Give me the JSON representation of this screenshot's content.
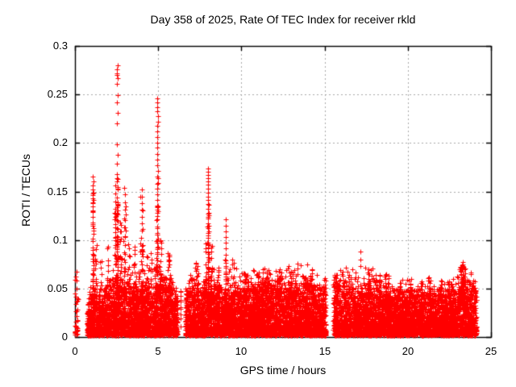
{
  "window": {
    "title": "Day 358 of 2025, Rate Of TEC Index for receiver rkld"
  },
  "colors": {
    "marker": "#ff0000",
    "frame": "#000000",
    "grid": "#a9a9a9",
    "background": "#ffffff",
    "text": "#000000"
  },
  "chart_data": {
    "type": "scatter",
    "title": "Day 358 of 2025, Rate Of TEC Index for receiver rkld",
    "xlabel": "GPS time / hours",
    "ylabel": "ROTI / TECUs",
    "xlim": [
      0,
      25
    ],
    "ylim": [
      0,
      0.3
    ],
    "xticks": [
      0,
      5,
      10,
      15,
      20,
      25
    ],
    "xtick_labels": [
      "0",
      "5",
      "10",
      "15",
      "20",
      "25"
    ],
    "yticks": [
      0,
      0.05,
      0.1,
      0.15,
      0.2,
      0.25,
      0.3
    ],
    "ytick_labels": [
      "0",
      "0.05",
      "0.1",
      "0.15",
      "0.2",
      "0.25",
      "0.3"
    ],
    "grid": true,
    "legend": "none",
    "marker": "plus",
    "marker_size_px": 7,
    "seed": 1234567,
    "description": "Dense red scatter band of ROTI values 0-0.05 TECU across 0-24.1 h with spikes near 1.1 h (to 0.165), 2.55 h (to 0.28), 4.95 h (to 0.246), 8.0 h (to 0.174), 9.05 h (to 0.12); data gaps near 0.25-0.73 h, 6.17-6.62 h and 15.07-15.52 h",
    "band": {
      "segments": [
        [
          0.73,
          6.17
        ],
        [
          6.62,
          15.07
        ],
        [
          15.52,
          24.12
        ]
      ],
      "density_points_per_hour": 500,
      "v_floor": 0.002,
      "envelope": [
        [
          0.73,
          0.03
        ],
        [
          1.1,
          0.042
        ],
        [
          1.6,
          0.036
        ],
        [
          2.1,
          0.046
        ],
        [
          2.6,
          0.052
        ],
        [
          3.1,
          0.05
        ],
        [
          3.6,
          0.046
        ],
        [
          4.1,
          0.05
        ],
        [
          4.6,
          0.046
        ],
        [
          5.0,
          0.052
        ],
        [
          5.6,
          0.046
        ],
        [
          6.1,
          0.04
        ],
        [
          6.62,
          0.04
        ],
        [
          7.0,
          0.044
        ],
        [
          7.6,
          0.046
        ],
        [
          8.0,
          0.05
        ],
        [
          8.6,
          0.046
        ],
        [
          9.1,
          0.047
        ],
        [
          9.6,
          0.044
        ],
        [
          10.1,
          0.046
        ],
        [
          10.6,
          0.048
        ],
        [
          11.1,
          0.05
        ],
        [
          11.6,
          0.048
        ],
        [
          12.1,
          0.049
        ],
        [
          12.6,
          0.048
        ],
        [
          13.1,
          0.05
        ],
        [
          13.6,
          0.047
        ],
        [
          14.1,
          0.05
        ],
        [
          14.6,
          0.046
        ],
        [
          15.0,
          0.044
        ],
        [
          15.55,
          0.05
        ],
        [
          16.1,
          0.046
        ],
        [
          16.6,
          0.044
        ],
        [
          17.1,
          0.045
        ],
        [
          17.65,
          0.049
        ],
        [
          18.1,
          0.045
        ],
        [
          18.6,
          0.044
        ],
        [
          19.1,
          0.041
        ],
        [
          19.6,
          0.04
        ],
        [
          20.1,
          0.041
        ],
        [
          20.6,
          0.04
        ],
        [
          21.1,
          0.043
        ],
        [
          21.6,
          0.041
        ],
        [
          22.1,
          0.04
        ],
        [
          22.6,
          0.041
        ],
        [
          23.1,
          0.048
        ],
        [
          23.35,
          0.055
        ],
        [
          23.7,
          0.046
        ],
        [
          24.12,
          0.042
        ]
      ]
    },
    "clusters_schema": [
      "t_center_hours",
      "t_spread_hours",
      "count",
      "v_min",
      "v_max",
      "bias"
    ],
    "clusters": [
      [
        0.08,
        0.18,
        32,
        0.002,
        0.045,
        1.6
      ],
      [
        0.06,
        0.1,
        5,
        0.045,
        0.07,
        1.0
      ],
      [
        1.08,
        0.07,
        26,
        0.04,
        0.15,
        1.2
      ],
      [
        1.25,
        0.12,
        14,
        0.035,
        0.095,
        1.3
      ],
      [
        1.55,
        0.12,
        10,
        0.035,
        0.08,
        1.3
      ],
      [
        2.0,
        0.15,
        14,
        0.035,
        0.1,
        1.4
      ],
      [
        2.42,
        0.1,
        20,
        0.04,
        0.13,
        1.3
      ],
      [
        2.55,
        0.06,
        36,
        0.04,
        0.165,
        1.1
      ],
      [
        2.75,
        0.1,
        18,
        0.04,
        0.12,
        1.3
      ],
      [
        3.0,
        0.15,
        22,
        0.04,
        0.15,
        1.3
      ],
      [
        3.25,
        0.1,
        10,
        0.04,
        0.1,
        1.3
      ],
      [
        3.55,
        0.1,
        12,
        0.04,
        0.1,
        1.3
      ],
      [
        4.0,
        0.18,
        28,
        0.04,
        0.145,
        1.4
      ],
      [
        4.35,
        0.1,
        8,
        0.04,
        0.085,
        1.3
      ],
      [
        4.6,
        0.1,
        10,
        0.04,
        0.09,
        1.3
      ],
      [
        4.95,
        0.08,
        34,
        0.04,
        0.165,
        1.1
      ],
      [
        5.15,
        0.1,
        14,
        0.04,
        0.11,
        1.3
      ],
      [
        5.65,
        0.15,
        20,
        0.04,
        0.09,
        1.3
      ],
      [
        6.35,
        0.06,
        12,
        0.006,
        0.05,
        1.0
      ],
      [
        7.3,
        0.12,
        10,
        0.04,
        0.078,
        1.3
      ],
      [
        7.85,
        0.08,
        12,
        0.04,
        0.1,
        1.3
      ],
      [
        8.0,
        0.07,
        30,
        0.04,
        0.14,
        1.2
      ],
      [
        8.2,
        0.08,
        12,
        0.04,
        0.095,
        1.3
      ],
      [
        8.6,
        0.12,
        12,
        0.04,
        0.085,
        1.3
      ],
      [
        9.05,
        0.07,
        16,
        0.04,
        0.115,
        1.2
      ],
      [
        9.5,
        0.12,
        10,
        0.04,
        0.08,
        1.3
      ],
      [
        10.3,
        0.35,
        24,
        0.04,
        0.068,
        1.2
      ],
      [
        11.0,
        0.2,
        16,
        0.04,
        0.067,
        1.2
      ],
      [
        11.6,
        0.15,
        14,
        0.04,
        0.066,
        1.2
      ],
      [
        12.2,
        0.2,
        14,
        0.04,
        0.064,
        1.2
      ],
      [
        13.0,
        0.22,
        16,
        0.04,
        0.068,
        1.2
      ],
      [
        13.8,
        0.15,
        12,
        0.04,
        0.064,
        1.2
      ],
      [
        14.2,
        0.15,
        14,
        0.04,
        0.071,
        1.2
      ],
      [
        15.7,
        0.15,
        24,
        0.012,
        0.073,
        1.1
      ],
      [
        16.1,
        0.1,
        10,
        0.04,
        0.072,
        1.2
      ],
      [
        16.6,
        0.1,
        10,
        0.04,
        0.064,
        1.2
      ],
      [
        17.65,
        0.15,
        16,
        0.04,
        0.073,
        1.2
      ],
      [
        18.3,
        0.1,
        10,
        0.04,
        0.06,
        1.2
      ],
      [
        18.65,
        0.14,
        14,
        0.04,
        0.073,
        1.2
      ],
      [
        19.5,
        0.15,
        10,
        0.04,
        0.059,
        1.2
      ],
      [
        20.2,
        0.15,
        10,
        0.04,
        0.061,
        1.2
      ],
      [
        20.8,
        0.1,
        8,
        0.04,
        0.059,
        1.2
      ],
      [
        21.3,
        0.15,
        12,
        0.04,
        0.066,
        1.2
      ],
      [
        22.0,
        0.15,
        10,
        0.04,
        0.059,
        1.2
      ],
      [
        22.6,
        0.1,
        8,
        0.04,
        0.06,
        1.2
      ],
      [
        23.3,
        0.35,
        40,
        0.04,
        0.075,
        1.2
      ],
      [
        23.9,
        0.1,
        8,
        0.04,
        0.058,
        1.2
      ]
    ],
    "spikes": [
      {
        "t": 1.08,
        "values": [
          0.165,
          0.16,
          0.156,
          0.152,
          0.149,
          0.146,
          0.143,
          0.139,
          0.135,
          0.13,
          0.124,
          0.118,
          0.112,
          0.106,
          0.099,
          0.092,
          0.085,
          0.078,
          0.071,
          0.064,
          0.057,
          0.05
        ]
      },
      {
        "t": 2.55,
        "values": [
          0.28,
          0.276,
          0.272,
          0.27,
          0.267,
          0.261,
          0.249,
          0.242,
          0.231,
          0.22,
          0.199,
          0.188,
          0.179,
          0.168,
          0.16,
          0.152,
          0.144,
          0.136,
          0.128,
          0.12,
          0.112,
          0.104,
          0.096,
          0.088,
          0.08,
          0.072,
          0.064,
          0.056
        ]
      },
      {
        "t": 2.42,
        "values": [
          0.156,
          0.148,
          0.14,
          0.132,
          0.124,
          0.116,
          0.108,
          0.1,
          0.092,
          0.084
        ]
      },
      {
        "t": 3.0,
        "values": [
          0.154,
          0.147,
          0.139,
          0.131,
          0.122,
          0.113,
          0.104,
          0.095,
          0.086,
          0.077,
          0.068
        ]
      },
      {
        "t": 4.0,
        "values": [
          0.152,
          0.145,
          0.138,
          0.131,
          0.124,
          0.117,
          0.11,
          0.102,
          0.094,
          0.086,
          0.078,
          0.07
        ]
      },
      {
        "t": 4.95,
        "values": [
          0.246,
          0.242,
          0.237,
          0.233,
          0.228,
          0.222,
          0.218,
          0.212,
          0.206,
          0.2,
          0.195,
          0.189,
          0.183,
          0.177,
          0.171,
          0.165,
          0.159,
          0.153,
          0.147,
          0.141,
          0.135,
          0.128,
          0.121,
          0.114,
          0.107,
          0.1,
          0.093,
          0.086,
          0.079,
          0.072,
          0.065
        ]
      },
      {
        "t": 7.99,
        "values": [
          0.174,
          0.17,
          0.167,
          0.164,
          0.16,
          0.157,
          0.153,
          0.149,
          0.145,
          0.141,
          0.137,
          0.132,
          0.127,
          0.122,
          0.117,
          0.112,
          0.107,
          0.102,
          0.097,
          0.092,
          0.087,
          0.082,
          0.077,
          0.072,
          0.067,
          0.062
        ]
      },
      {
        "t": 9.05,
        "values": [
          0.121,
          0.115,
          0.109,
          0.103,
          0.097,
          0.091,
          0.085,
          0.079,
          0.073,
          0.067
        ]
      },
      {
        "t": 17.15,
        "values": [
          0.088,
          0.08,
          0.073
        ]
      },
      {
        "t": 23.3,
        "values": [
          0.077,
          0.073,
          0.07,
          0.067,
          0.064,
          0.061,
          0.058
        ]
      }
    ]
  }
}
